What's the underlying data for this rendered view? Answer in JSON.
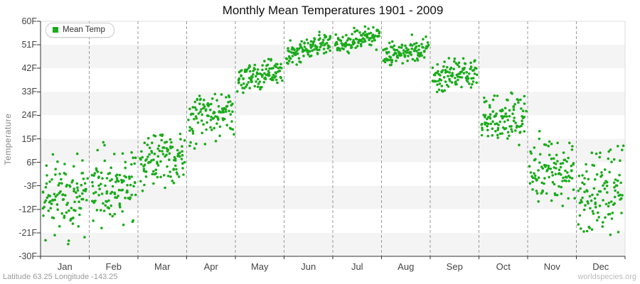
{
  "title": "Monthly Mean Temperatures 1901 - 2009",
  "legend": {
    "label": "Mean Temp"
  },
  "y_axis": {
    "label": "Temperature",
    "ticks": [
      "60F",
      "51F",
      "42F",
      "33F",
      "24F",
      "15F",
      "6F",
      "-3F",
      "-12F",
      "-21F",
      "-30F"
    ],
    "tick_values": [
      60,
      51,
      42,
      33,
      24,
      15,
      6,
      -3,
      -12,
      -21,
      -30
    ]
  },
  "x_axis": {
    "months": [
      "Jan",
      "Feb",
      "Mar",
      "Apr",
      "May",
      "Jun",
      "Jul",
      "Aug",
      "Sep",
      "Oct",
      "Nov",
      "Dec"
    ]
  },
  "footer": {
    "left": "Latitude 63.25 Longitude -143.25",
    "right": "worldspecies.org"
  },
  "colors": {
    "point": "#1aab1a",
    "band_gray": "#f4f4f4",
    "band_white": "#ffffff",
    "gridline": "#999999",
    "axis": "#333333",
    "plot_border": "#dddddd",
    "tick_text": "#444444",
    "title_text": "#111111"
  },
  "chart_data": {
    "type": "scatter",
    "title": "Monthly Mean Temperatures 1901 - 2009",
    "xlabel": "",
    "ylabel": "Temperature",
    "unit": "F",
    "ylim": [
      -30,
      60
    ],
    "y_tick_step": 9,
    "grid": "vertical-dashed-month-boundaries",
    "legend_position": "top-left-inside",
    "years": [
      1901,
      2009
    ],
    "points_per_month": 109,
    "categories": [
      "Jan",
      "Feb",
      "Mar",
      "Apr",
      "May",
      "Jun",
      "Jul",
      "Aug",
      "Sep",
      "Oct",
      "Nov",
      "Dec"
    ],
    "series": [
      {
        "month": "Jan",
        "mean": -8.0,
        "std": 7.8,
        "min": -27,
        "max": 15,
        "trend": 2
      },
      {
        "month": "Feb",
        "mean": -3.0,
        "std": 7.0,
        "min": -23,
        "max": 16,
        "trend": 2
      },
      {
        "month": "Mar",
        "mean": 6.5,
        "std": 6.0,
        "min": -12,
        "max": 26,
        "trend": 2
      },
      {
        "month": "Apr",
        "mean": 24.5,
        "std": 4.3,
        "min": 11,
        "max": 34,
        "trend": 2
      },
      {
        "month": "May",
        "mean": 39.5,
        "std": 2.8,
        "min": 31,
        "max": 47,
        "trend": 3
      },
      {
        "month": "Jun",
        "mean": 49.5,
        "std": 2.3,
        "min": 43,
        "max": 57,
        "trend": 5
      },
      {
        "month": "Jul",
        "mean": 52.5,
        "std": 1.9,
        "min": 46.5,
        "max": 58,
        "trend": 4
      },
      {
        "month": "Aug",
        "mean": 48.5,
        "std": 2.2,
        "min": 43,
        "max": 55,
        "trend": 4
      },
      {
        "month": "Sep",
        "mean": 39.5,
        "std": 2.8,
        "min": 32,
        "max": 47,
        "trend": 2
      },
      {
        "month": "Oct",
        "mean": 23.5,
        "std": 4.5,
        "min": 12,
        "max": 33,
        "trend": 2
      },
      {
        "month": "Nov",
        "mean": 3.5,
        "std": 7.0,
        "min": -15,
        "max": 19,
        "trend": 2
      },
      {
        "month": "Dec",
        "mean": -3.5,
        "std": 8.0,
        "min": -28,
        "max": 14,
        "trend": 2
      }
    ],
    "seed": 19012009
  }
}
